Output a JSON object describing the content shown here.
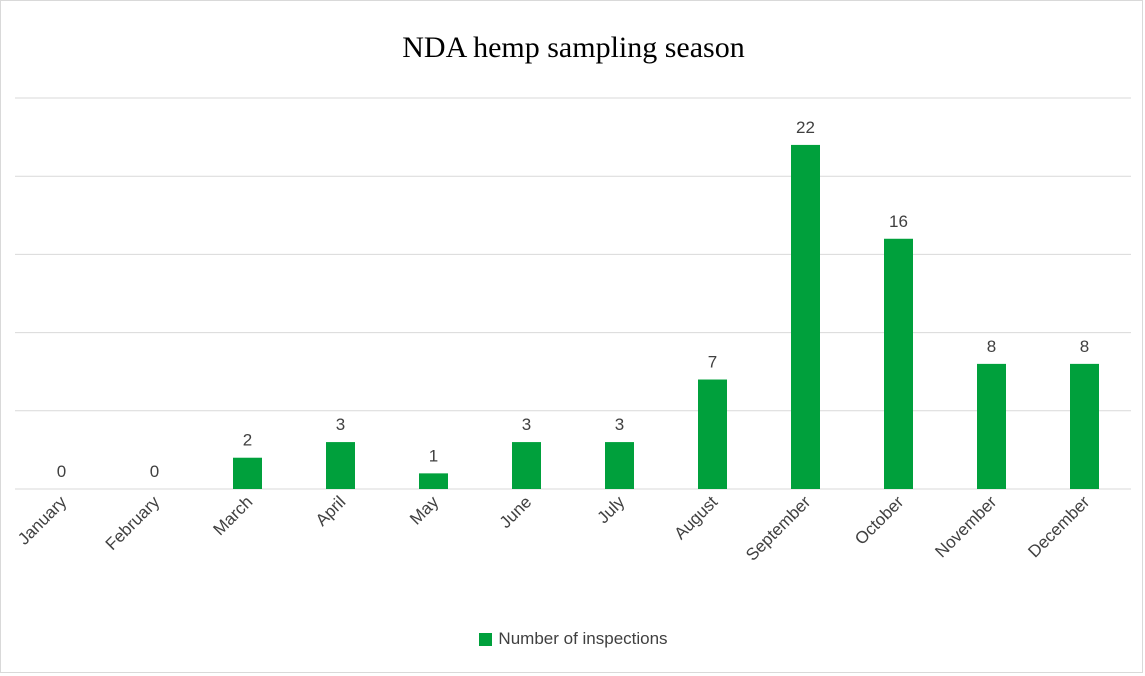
{
  "chart_data": {
    "type": "bar",
    "title": "NDA hemp sampling season",
    "xlabel": "",
    "ylabel": "",
    "categories": [
      "January",
      "February",
      "March",
      "April",
      "May",
      "June",
      "July",
      "August",
      "September",
      "October",
      "November",
      "December"
    ],
    "series": [
      {
        "name": "Number of inspections",
        "values": [
          0,
          0,
          2,
          3,
          1,
          3,
          3,
          7,
          22,
          16,
          8,
          8
        ],
        "color": "#00a03c"
      }
    ],
    "ylim": [
      0,
      25
    ],
    "grid": true,
    "data_labels": true,
    "legend_position": "bottom"
  }
}
